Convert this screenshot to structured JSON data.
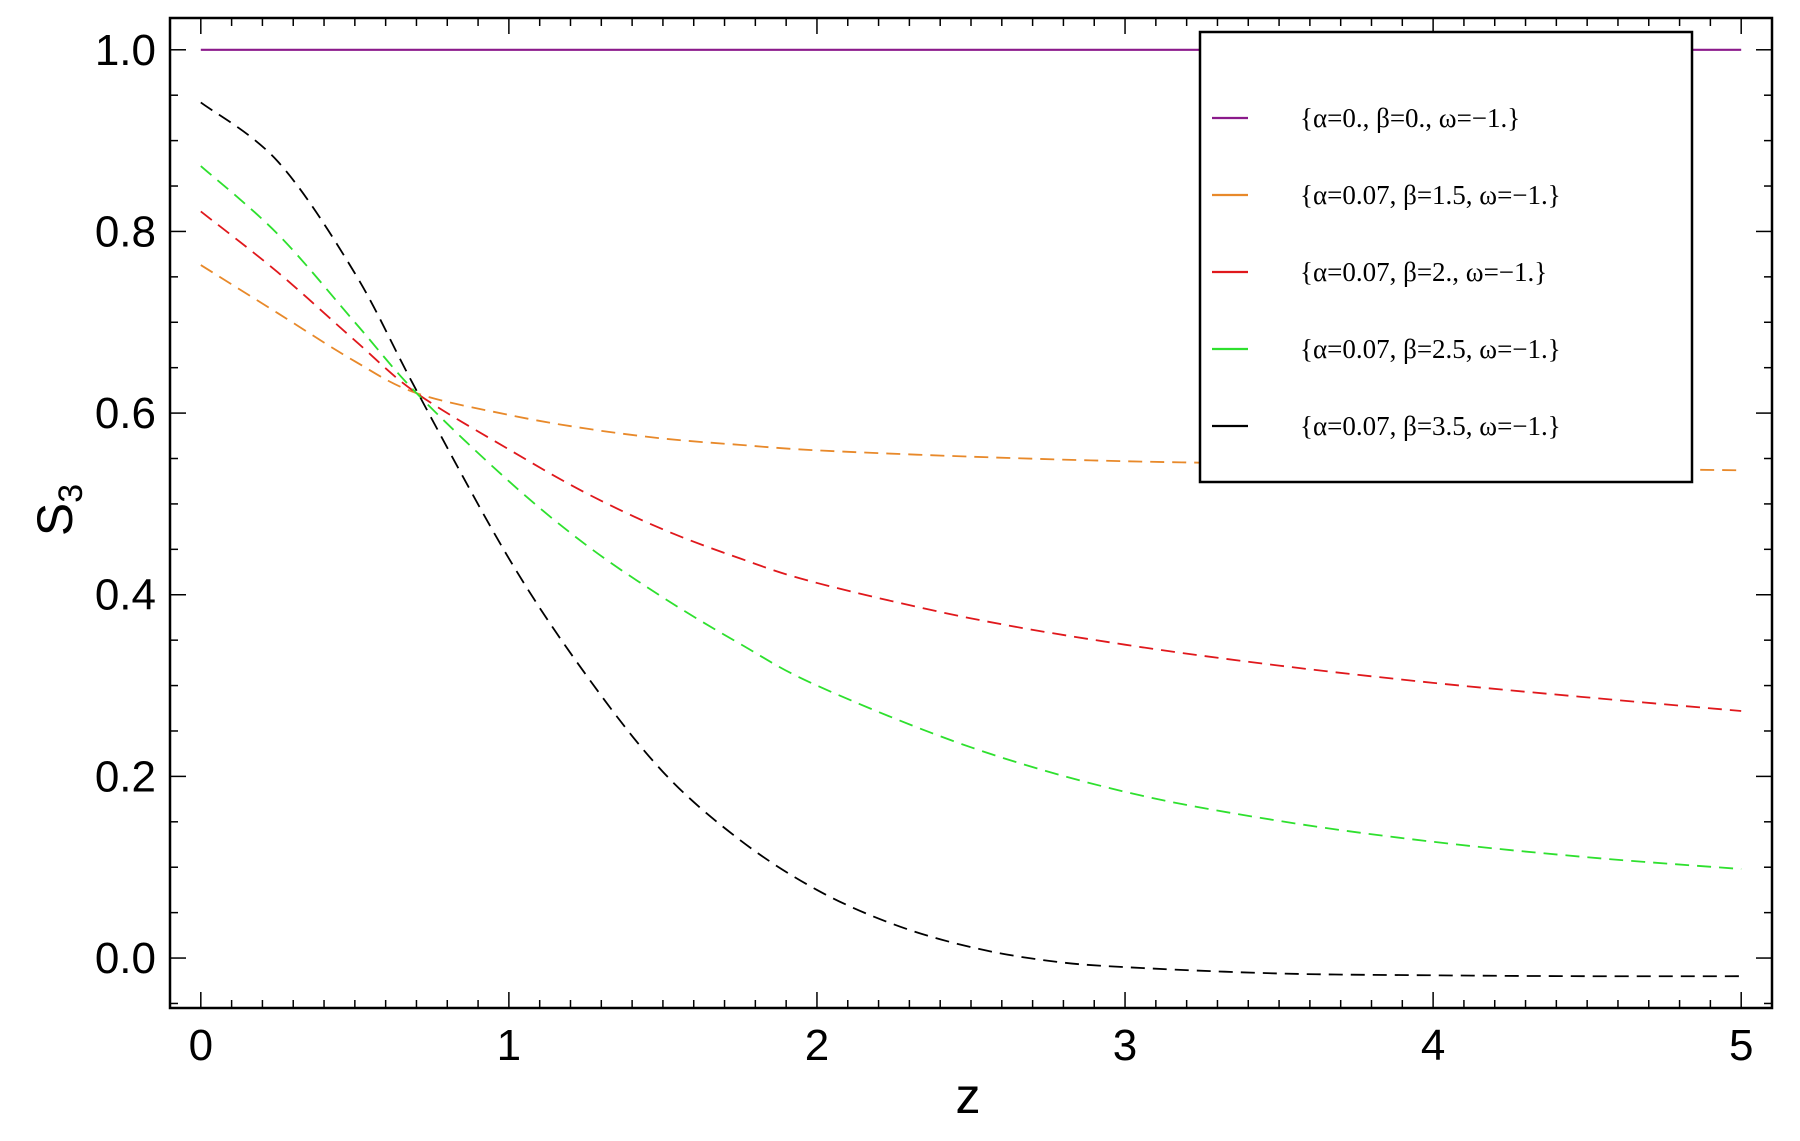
{
  "chart_data": {
    "type": "line",
    "xlabel": "z",
    "ylabel": {
      "base": "S",
      "subscript": "3"
    },
    "xlim": [
      -0.1,
      5.1
    ],
    "ylim": [
      -0.055,
      1.035
    ],
    "x_ticks": [
      0,
      1,
      2,
      3,
      4,
      5
    ],
    "x_tick_labels": [
      "0",
      "1",
      "2",
      "3",
      "4",
      "5"
    ],
    "y_ticks": [
      0.0,
      0.2,
      0.4,
      0.6,
      0.8,
      1.0
    ],
    "y_tick_labels": [
      "0.0",
      "0.2",
      "0.4",
      "0.6",
      "0.8",
      "1.0"
    ],
    "grid": false,
    "legend_position": "top-right",
    "series": [
      {
        "name": "{α=0., β=0., ω=−1.}",
        "color": "#8b1a8b",
        "dash": "solid",
        "x": [
          0,
          0.5,
          1,
          1.5,
          2,
          2.5,
          3,
          3.5,
          4,
          4.5,
          5
        ],
        "y": [
          1.0,
          1.0,
          1.0,
          1.0,
          1.0,
          1.0,
          1.0,
          1.0,
          1.0,
          1.0,
          1.0
        ]
      },
      {
        "name": "{α=0.07, β=1.5, ω=−1.}",
        "color": "#e8892a",
        "dash": "dashed",
        "x": [
          0,
          0.25,
          0.5,
          0.7,
          1,
          1.25,
          1.5,
          1.75,
          2,
          2.5,
          3,
          3.5,
          4,
          4.5,
          5
        ],
        "y": [
          0.763,
          0.71,
          0.657,
          0.622,
          0.598,
          0.583,
          0.572,
          0.565,
          0.559,
          0.552,
          0.547,
          0.544,
          0.541,
          0.539,
          0.537
        ]
      },
      {
        "name": "{α=0.07, β=2., ω=−1.}",
        "color": "#e0181c",
        "dash": "dashed",
        "x": [
          0,
          0.25,
          0.5,
          0.7,
          1,
          1.25,
          1.5,
          1.75,
          2,
          2.5,
          3,
          3.5,
          4,
          4.5,
          5
        ],
        "y": [
          0.822,
          0.755,
          0.68,
          0.622,
          0.56,
          0.512,
          0.472,
          0.44,
          0.413,
          0.374,
          0.345,
          0.322,
          0.303,
          0.287,
          0.272
        ]
      },
      {
        "name": "{α=0.07, β=2.5, ω=−1.}",
        "color": "#2ee02e",
        "dash": "dashed",
        "x": [
          0,
          0.25,
          0.5,
          0.7,
          1,
          1.25,
          1.5,
          1.75,
          2,
          2.5,
          3,
          3.5,
          4,
          4.5,
          5
        ],
        "y": [
          0.872,
          0.797,
          0.7,
          0.622,
          0.525,
          0.455,
          0.397,
          0.346,
          0.3,
          0.232,
          0.183,
          0.151,
          0.128,
          0.111,
          0.098
        ]
      },
      {
        "name": "{α=0.07, β=3.5, ω=−1.}",
        "color": "#000000",
        "dash": "dashed",
        "x": [
          0,
          0.25,
          0.5,
          0.7,
          1,
          1.25,
          1.5,
          1.75,
          2,
          2.25,
          2.5,
          2.75,
          3,
          3.5,
          4,
          4.5,
          5
        ],
        "y": [
          0.942,
          0.877,
          0.754,
          0.625,
          0.44,
          0.312,
          0.205,
          0.13,
          0.075,
          0.037,
          0.012,
          -0.003,
          -0.01,
          -0.017,
          -0.019,
          -0.02,
          -0.02
        ]
      }
    ]
  }
}
